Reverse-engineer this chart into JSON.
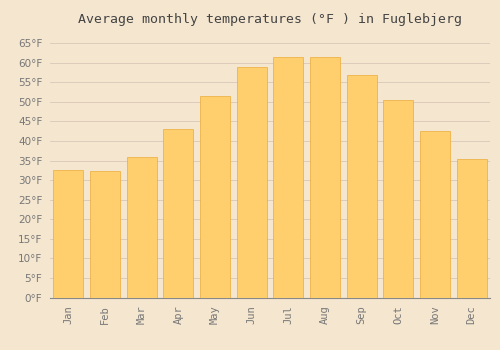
{
  "title": "Average monthly temperatures (°F ) in Fuglebjerg",
  "months": [
    "Jan",
    "Feb",
    "Mar",
    "Apr",
    "May",
    "Jun",
    "Jul",
    "Aug",
    "Sep",
    "Oct",
    "Nov",
    "Dec"
  ],
  "values": [
    32.5,
    32.3,
    36.0,
    43.0,
    51.5,
    59.0,
    61.5,
    61.5,
    57.0,
    50.5,
    42.5,
    35.5
  ],
  "bar_color_top": "#FFB733",
  "bar_color_bottom": "#FFCF6E",
  "bar_edge_color": "#E8A020",
  "background_color": "#F5E6D0",
  "grid_color": "#DDCCBB",
  "ylim": [
    0,
    68
  ],
  "yticks": [
    0,
    5,
    10,
    15,
    20,
    25,
    30,
    35,
    40,
    45,
    50,
    55,
    60,
    65
  ],
  "title_fontsize": 9.5,
  "tick_fontsize": 7.5,
  "title_color": "#444444",
  "tick_color": "#777777",
  "bar_width": 0.82
}
